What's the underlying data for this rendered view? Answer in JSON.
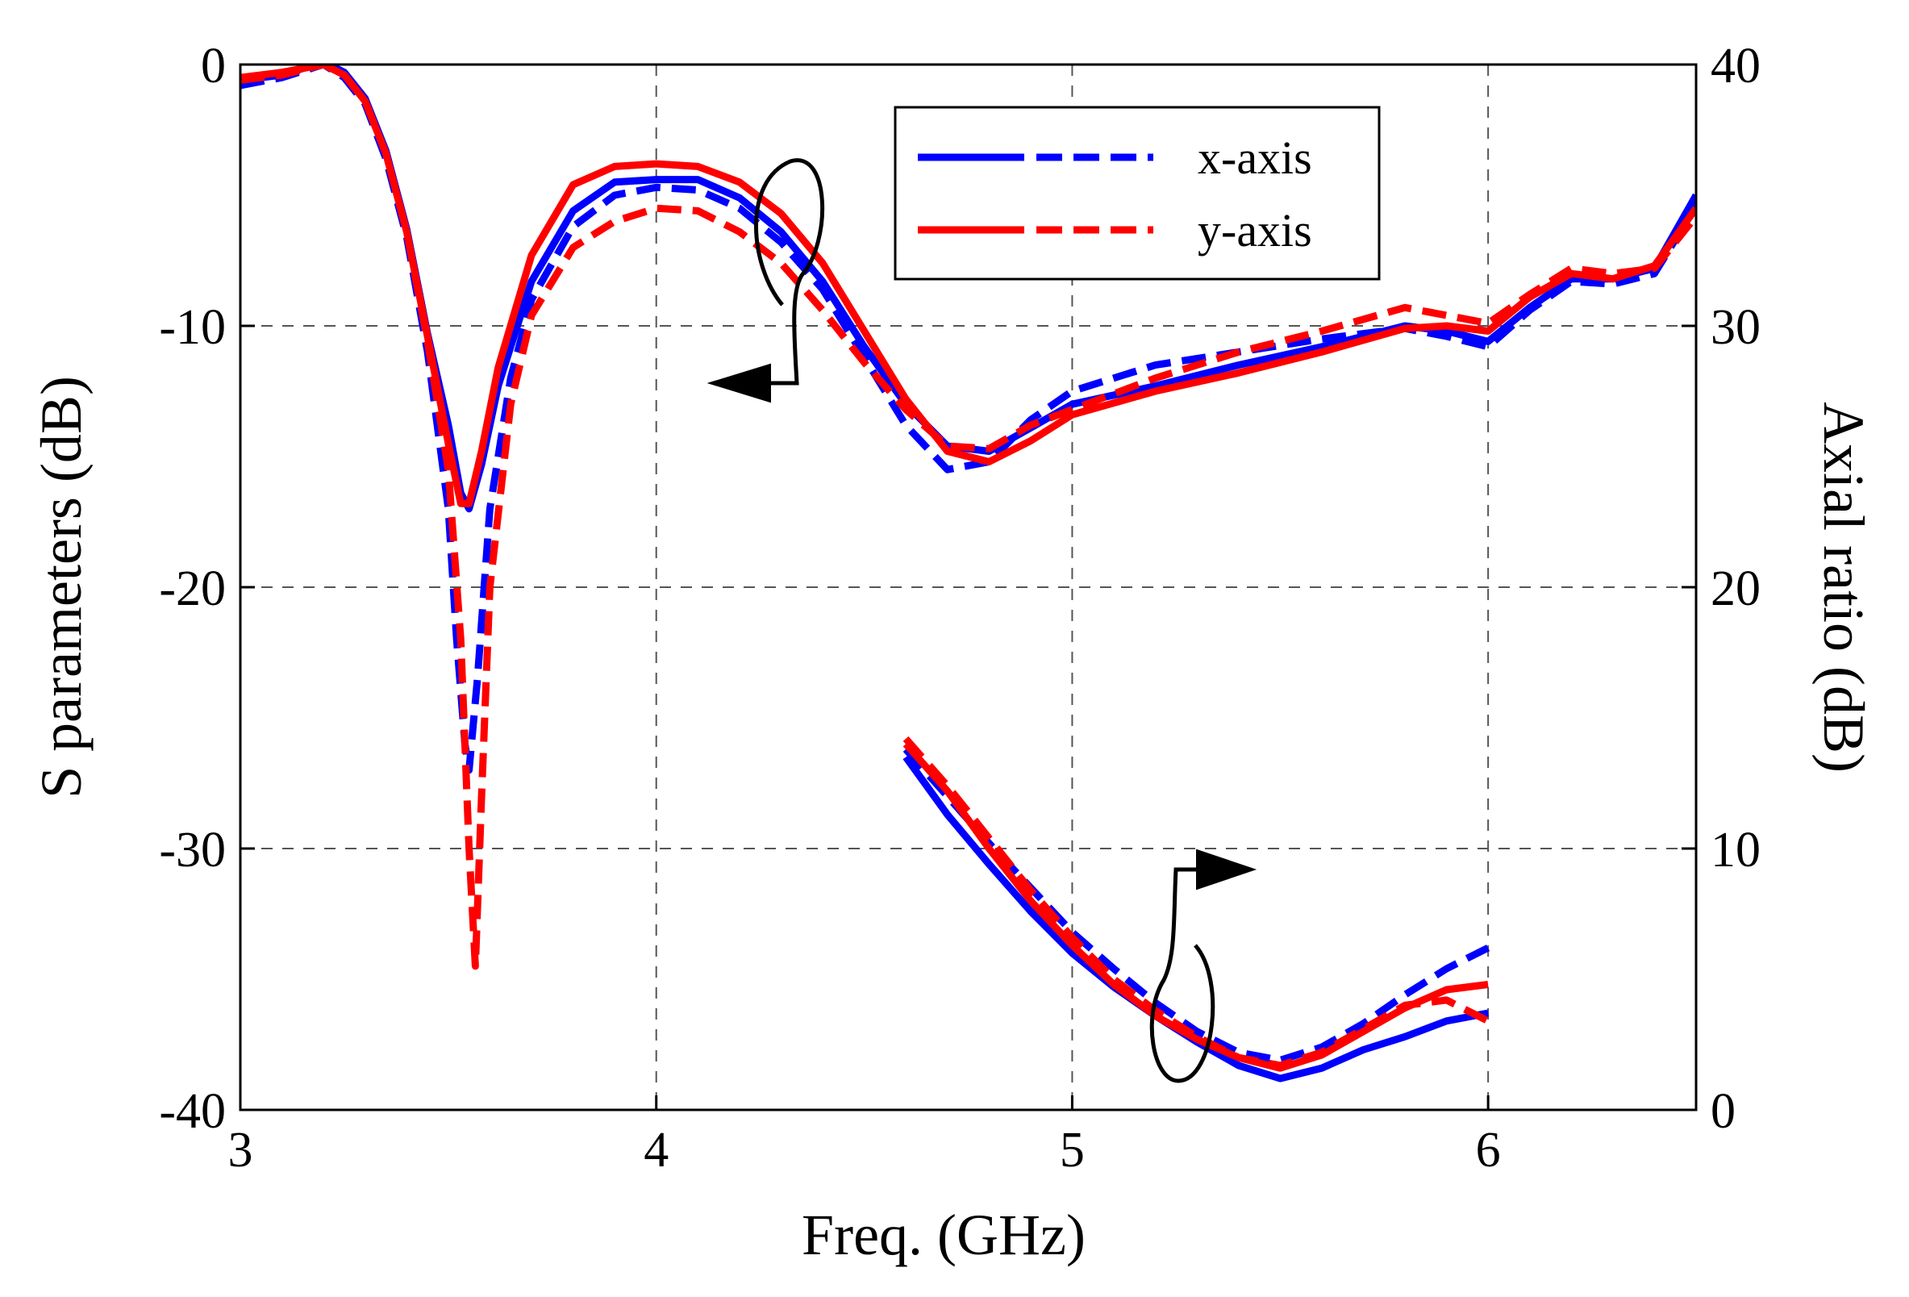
{
  "chart_data": {
    "type": "line",
    "xlabel": "Freq. (GHz)",
    "ylabel": "S parameters (dB)",
    "y2label": "Axial ratio (dB)",
    "xlim": [
      3,
      6.5
    ],
    "ylim": [
      -40,
      0
    ],
    "y2lim": [
      0,
      40
    ],
    "x_ticks": [
      "3",
      "4",
      "5",
      "6"
    ],
    "y_ticks": [
      "0",
      "-10",
      "-20",
      "-30",
      "-40"
    ],
    "y2_ticks": [
      "40",
      "30",
      "20",
      "10",
      "0"
    ],
    "grid": true,
    "legend": {
      "placement": "top-right",
      "entries": [
        {
          "label": "x-axis",
          "color": "#0000ff"
        },
        {
          "label": "y-axis",
          "color": "#ff0000"
        }
      ]
    },
    "series": [
      {
        "name": "x-axis S (solid)",
        "color": "#0000ff",
        "dash": false,
        "axis": "left",
        "x": [
          3.0,
          3.1,
          3.2,
          3.25,
          3.3,
          3.35,
          3.4,
          3.45,
          3.5,
          3.53,
          3.55,
          3.58,
          3.62,
          3.7,
          3.8,
          3.9,
          4.0,
          4.1,
          4.2,
          4.3,
          4.4,
          4.5,
          4.6,
          4.7,
          4.8,
          4.9,
          5.0,
          5.2,
          5.4,
          5.6,
          5.8,
          5.9,
          6.0,
          6.1,
          6.2,
          6.3,
          6.4,
          6.5
        ],
        "y": [
          -0.6,
          -0.4,
          0.1,
          -0.3,
          -1.3,
          -3.3,
          -6.3,
          -10.3,
          -13.8,
          -16.4,
          -17.0,
          -15.3,
          -12.3,
          -8.3,
          -5.6,
          -4.5,
          -4.4,
          -4.4,
          -5.1,
          -6.4,
          -8.3,
          -10.8,
          -13.0,
          -14.6,
          -14.8,
          -13.9,
          -13.0,
          -12.3,
          -11.5,
          -10.8,
          -10.0,
          -10.2,
          -10.6,
          -9.3,
          -8.2,
          -8.2,
          -7.8,
          -5.0
        ]
      },
      {
        "name": "x-axis S (dashed)",
        "color": "#0000ff",
        "dash": true,
        "axis": "left",
        "x": [
          3.0,
          3.1,
          3.2,
          3.25,
          3.3,
          3.35,
          3.4,
          3.45,
          3.5,
          3.52,
          3.54,
          3.55,
          3.57,
          3.6,
          3.65,
          3.7,
          3.8,
          3.9,
          4.0,
          4.1,
          4.2,
          4.3,
          4.4,
          4.5,
          4.6,
          4.7,
          4.8,
          4.9,
          5.0,
          5.2,
          5.4,
          5.6,
          5.8,
          5.9,
          6.0,
          6.1,
          6.2,
          6.3,
          6.4,
          6.5
        ],
        "y": [
          -0.8,
          -0.5,
          0.0,
          -0.5,
          -1.5,
          -3.6,
          -6.6,
          -11.0,
          -17.0,
          -22.0,
          -26.0,
          -27.0,
          -23.5,
          -17.0,
          -12.0,
          -9.0,
          -6.2,
          -5.0,
          -4.7,
          -4.8,
          -5.5,
          -6.8,
          -8.6,
          -11.2,
          -13.8,
          -15.5,
          -15.2,
          -13.6,
          -12.5,
          -11.5,
          -11.0,
          -10.5,
          -10.1,
          -10.4,
          -10.8,
          -9.4,
          -8.3,
          -8.4,
          -8.0,
          -5.4
        ]
      },
      {
        "name": "y-axis S (solid)",
        "color": "#ff0000",
        "dash": false,
        "axis": "left",
        "x": [
          3.0,
          3.1,
          3.2,
          3.25,
          3.3,
          3.35,
          3.4,
          3.45,
          3.5,
          3.53,
          3.55,
          3.58,
          3.62,
          3.7,
          3.8,
          3.9,
          4.0,
          4.1,
          4.2,
          4.3,
          4.4,
          4.5,
          4.6,
          4.7,
          4.8,
          4.9,
          5.0,
          5.2,
          5.4,
          5.6,
          5.8,
          5.9,
          6.0,
          6.1,
          6.2,
          6.3,
          6.4,
          6.5
        ],
        "y": [
          -0.5,
          -0.3,
          0.0,
          -0.4,
          -1.4,
          -3.4,
          -6.4,
          -10.4,
          -14.5,
          -16.8,
          -16.8,
          -14.8,
          -11.6,
          -7.3,
          -4.6,
          -3.9,
          -3.8,
          -3.9,
          -4.5,
          -5.7,
          -7.6,
          -10.2,
          -12.8,
          -14.8,
          -15.2,
          -14.4,
          -13.4,
          -12.5,
          -11.8,
          -11.0,
          -10.1,
          -10.0,
          -10.2,
          -8.9,
          -8.0,
          -8.2,
          -7.7,
          -5.5
        ]
      },
      {
        "name": "y-axis S (dashed)",
        "color": "#ff0000",
        "dash": true,
        "axis": "left",
        "x": [
          3.0,
          3.1,
          3.2,
          3.25,
          3.3,
          3.35,
          3.4,
          3.45,
          3.5,
          3.53,
          3.55,
          3.565,
          3.58,
          3.6,
          3.65,
          3.7,
          3.8,
          3.9,
          4.0,
          4.1,
          4.2,
          4.3,
          4.4,
          4.5,
          4.6,
          4.7,
          4.8,
          4.9,
          5.0,
          5.2,
          5.4,
          5.6,
          5.8,
          5.9,
          6.0,
          6.1,
          6.2,
          6.3,
          6.4,
          6.5
        ],
        "y": [
          -0.6,
          -0.4,
          0.0,
          -0.4,
          -1.4,
          -3.4,
          -6.4,
          -10.6,
          -15.5,
          -22.0,
          -30.0,
          -34.5,
          -28.0,
          -20.0,
          -13.0,
          -9.6,
          -7.0,
          -6.0,
          -5.5,
          -5.6,
          -6.4,
          -7.6,
          -9.4,
          -11.4,
          -13.2,
          -14.6,
          -14.7,
          -13.8,
          -13.2,
          -12.0,
          -11.0,
          -10.2,
          -9.3,
          -9.6,
          -9.9,
          -8.8,
          -7.8,
          -8.0,
          -7.8,
          -5.8
        ]
      },
      {
        "name": "x-axis AR (solid)",
        "color": "#0000ff",
        "dash": false,
        "axis": "right",
        "x": [
          4.6,
          4.7,
          4.8,
          4.9,
          5.0,
          5.1,
          5.2,
          5.3,
          5.4,
          5.5,
          5.6,
          5.7,
          5.8,
          5.9,
          6.0
        ],
        "y": [
          13.5,
          11.3,
          9.4,
          7.6,
          6.0,
          4.7,
          3.6,
          2.6,
          1.7,
          1.2,
          1.6,
          2.3,
          2.8,
          3.4,
          3.7
        ]
      },
      {
        "name": "x-axis AR (dashed)",
        "color": "#0000ff",
        "dash": true,
        "axis": "right",
        "x": [
          4.6,
          4.7,
          4.8,
          4.9,
          5.0,
          5.1,
          5.2,
          5.3,
          5.4,
          5.5,
          5.6,
          5.7,
          5.8,
          5.9,
          6.0
        ],
        "y": [
          13.8,
          12.0,
          10.2,
          8.5,
          6.8,
          5.4,
          4.1,
          3.0,
          2.2,
          1.9,
          2.4,
          3.3,
          4.4,
          5.4,
          6.2
        ]
      },
      {
        "name": "y-axis AR (solid)",
        "color": "#ff0000",
        "dash": false,
        "axis": "right",
        "x": [
          4.6,
          4.7,
          4.8,
          4.9,
          5.0,
          5.1,
          5.2,
          5.3,
          5.4,
          5.5,
          5.6,
          5.7,
          5.8,
          5.9,
          6.0
        ],
        "y": [
          14.0,
          12.2,
          10.0,
          8.0,
          6.3,
          4.8,
          3.6,
          2.7,
          2.0,
          1.6,
          2.1,
          3.0,
          3.9,
          4.6,
          4.8
        ]
      },
      {
        "name": "y-axis AR (dashed)",
        "color": "#ff0000",
        "dash": true,
        "axis": "right",
        "x": [
          4.6,
          4.7,
          4.8,
          4.9,
          5.0,
          5.1,
          5.2,
          5.3,
          5.4,
          5.5,
          5.6,
          5.7,
          5.8,
          5.9,
          6.0
        ],
        "y": [
          14.2,
          12.4,
          10.4,
          8.4,
          6.6,
          5.0,
          3.8,
          2.8,
          2.0,
          1.7,
          2.2,
          3.1,
          4.0,
          4.2,
          3.4
        ]
      }
    ]
  }
}
